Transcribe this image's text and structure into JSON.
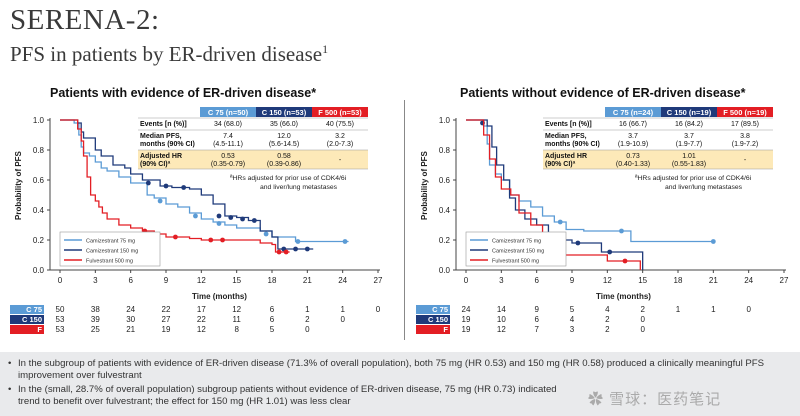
{
  "slide": {
    "title": "SERENA-2:",
    "subtitle": "PFS in patients by ER-driven disease",
    "subtitle_sup": "1",
    "watermark": "✿ 雪球：医药笔记",
    "bullets": [
      "In the subgroup of patients with evidence of ER-driven disease (71.3% of overall population), both 75 mg (HR 0.53) and 150 mg (HR 0.58) produced a clinically meaningful PFS improvement over fulvestrant",
      "In the (small, 28.7% of overall population) subgroup patients without evidence of ER-driven disease, 75 mg (HR 0.73) indicated trend to benefit over fulvestrant; the effect for 150 mg (HR 1.01) was less clear"
    ]
  },
  "colors": {
    "c75": "#5b9bd5",
    "c150": "#1f3a7a",
    "f500": "#e31e24",
    "hr_bg": "#fde9b8",
    "grid": "#cccccc"
  },
  "chart_data": [
    {
      "type": "line",
      "title": "Patients with evidence of ER-driven disease*",
      "xlabel": "Time (months)",
      "ylabel": "Probability of PFS",
      "xlim": [
        0,
        27
      ],
      "ylim": [
        0,
        1.0
      ],
      "x_ticks": [
        "0",
        "3",
        "6",
        "9",
        "12",
        "15",
        "18",
        "21",
        "24",
        "27"
      ],
      "y_ticks": [
        "0.0",
        "0.2",
        "0.4",
        "0.6",
        "0.8",
        "1.0"
      ],
      "grid": false,
      "legend_position": "bottom-left",
      "table": {
        "headers": [
          "C 75 (n=50)",
          "C 150 (n=53)",
          "F 500 (n=53)"
        ],
        "rows": [
          {
            "label": "Events [n (%)]",
            "values": [
              "34 (68.0)",
              "35 (66.0)",
              "40 (75.5)"
            ]
          },
          {
            "label": "Median PFS, months (90% CI)",
            "values": [
              "7.4 (4.5-11.1)",
              "12.0 (5.6-14.5)",
              "3.2 (2.0-7.3)"
            ]
          },
          {
            "label": "Adjusted HR (90% CI)ª",
            "values": [
              "0.53 (0.35-0.79)",
              "0.58 (0.39-0.86)",
              "-"
            ]
          }
        ],
        "footnote": "ªHRs adjusted for prior use of CDK4/6i and liver/lung metastases"
      },
      "series": [
        {
          "name": "Camizestrant 75 mg",
          "color": "#5b9bd5",
          "points": [
            [
              0,
              1.0
            ],
            [
              1,
              1.0
            ],
            [
              1.2,
              0.98
            ],
            [
              1.6,
              0.9
            ],
            [
              1.8,
              0.82
            ],
            [
              2,
              0.78
            ],
            [
              2.5,
              0.76
            ],
            [
              3,
              0.72
            ],
            [
              3.5,
              0.68
            ],
            [
              4,
              0.66
            ],
            [
              5,
              0.62
            ],
            [
              6,
              0.58
            ],
            [
              7.4,
              0.5
            ],
            [
              8,
              0.48
            ],
            [
              9,
              0.44
            ],
            [
              10,
              0.42
            ],
            [
              11,
              0.38
            ],
            [
              12,
              0.34
            ],
            [
              13,
              0.32
            ],
            [
              14,
              0.3
            ],
            [
              15,
              0.28
            ],
            [
              17,
              0.26
            ],
            [
              18,
              0.22
            ],
            [
              20,
              0.19
            ],
            [
              24.5,
              0.19
            ]
          ],
          "censors": [
            [
              8.5,
              0.46
            ],
            [
              11.5,
              0.36
            ],
            [
              13.5,
              0.31
            ],
            [
              17.5,
              0.24
            ],
            [
              20.2,
              0.19
            ],
            [
              24.2,
              0.19
            ]
          ]
        },
        {
          "name": "Camizestrant 150 mg",
          "color": "#1f3a7a",
          "points": [
            [
              0,
              1.0
            ],
            [
              1.5,
              0.98
            ],
            [
              1.8,
              0.92
            ],
            [
              2,
              0.88
            ],
            [
              3,
              0.8
            ],
            [
              3.5,
              0.76
            ],
            [
              4.5,
              0.7
            ],
            [
              5.5,
              0.68
            ],
            [
              6,
              0.64
            ],
            [
              7,
              0.6
            ],
            [
              8.5,
              0.56
            ],
            [
              9.5,
              0.55
            ],
            [
              11,
              0.54
            ],
            [
              12,
              0.5
            ],
            [
              13,
              0.44
            ],
            [
              14,
              0.36
            ],
            [
              15,
              0.35
            ],
            [
              16,
              0.33
            ],
            [
              17,
              0.26
            ],
            [
              18,
              0.22
            ],
            [
              18.5,
              0.14
            ],
            [
              21.5,
              0.14
            ]
          ],
          "censors": [
            [
              7.5,
              0.58
            ],
            [
              9,
              0.56
            ],
            [
              10.5,
              0.55
            ],
            [
              13.5,
              0.36
            ],
            [
              14.5,
              0.35
            ],
            [
              15.5,
              0.34
            ],
            [
              16.5,
              0.33
            ],
            [
              19,
              0.14
            ],
            [
              20,
              0.14
            ],
            [
              21,
              0.14
            ]
          ]
        },
        {
          "name": "Fulvestrant 500 mg",
          "color": "#e31e24",
          "points": [
            [
              0,
              1.0
            ],
            [
              1.2,
              1.0
            ],
            [
              1.5,
              0.94
            ],
            [
              1.8,
              0.86
            ],
            [
              2,
              0.76
            ],
            [
              2.3,
              0.62
            ],
            [
              2.6,
              0.5
            ],
            [
              3,
              0.46
            ],
            [
              3.3,
              0.42
            ],
            [
              3.6,
              0.38
            ],
            [
              4,
              0.34
            ],
            [
              5,
              0.3
            ],
            [
              6,
              0.28
            ],
            [
              7,
              0.26
            ],
            [
              8,
              0.24
            ],
            [
              9,
              0.22
            ],
            [
              11,
              0.21
            ],
            [
              12,
              0.2
            ],
            [
              15,
              0.2
            ],
            [
              17,
              0.18
            ],
            [
              18,
              0.17
            ],
            [
              18.3,
              0.12
            ],
            [
              19.5,
              0.12
            ]
          ],
          "censors": [
            [
              7.2,
              0.26
            ],
            [
              9.8,
              0.22
            ],
            [
              12.8,
              0.2
            ],
            [
              13.8,
              0.2
            ],
            [
              18.6,
              0.12
            ],
            [
              19.2,
              0.12
            ]
          ]
        }
      ],
      "at_risk": {
        "labels": [
          "C 75",
          "C 150",
          "F"
        ],
        "rows": [
          [
            "50",
            "38",
            "24",
            "22",
            "17",
            "12",
            "6",
            "1",
            "1",
            "0"
          ],
          [
            "53",
            "39",
            "30",
            "27",
            "22",
            "11",
            "6",
            "2",
            "0",
            ""
          ],
          [
            "53",
            "25",
            "21",
            "19",
            "12",
            "8",
            "5",
            "0",
            "",
            ""
          ]
        ]
      }
    },
    {
      "type": "line",
      "title": "Patients without evidence of ER-driven disease*",
      "xlabel": "Time (months)",
      "ylabel": "Probability of PFS",
      "xlim": [
        0,
        27
      ],
      "ylim": [
        0,
        1.0
      ],
      "x_ticks": [
        "0",
        "3",
        "6",
        "9",
        "12",
        "15",
        "18",
        "21",
        "24",
        "27"
      ],
      "y_ticks": [
        "0.0",
        "0.2",
        "0.4",
        "0.6",
        "0.8",
        "1.0"
      ],
      "grid": false,
      "legend_position": "bottom-left",
      "table": {
        "headers": [
          "C 75 (n=24)",
          "C 150 (n=19)",
          "F 500 (n=19)"
        ],
        "rows": [
          {
            "label": "Events [n (%)]",
            "values": [
              "16 (66.7)",
              "16 (84.2)",
              "17 (89.5)"
            ]
          },
          {
            "label": "Median PFS, months (90% CI)",
            "values": [
              "3.7 (1.9-10.9)",
              "3.7 (1.9-7.7)",
              "3.8 (1.9-7.2)"
            ]
          },
          {
            "label": "Adjusted HR (90% CI)ª",
            "values": [
              "0.73 (0.40-1.33)",
              "1.01 (0.55-1.83)",
              "-"
            ]
          }
        ],
        "footnote": "ªHRs adjusted for prior use of CDK4/6i and liver/lung metastases"
      },
      "series": [
        {
          "name": "Camizestrant 75 mg",
          "color": "#5b9bd5",
          "points": [
            [
              0,
              1.0
            ],
            [
              1,
              1.0
            ],
            [
              1.5,
              0.96
            ],
            [
              1.8,
              0.84
            ],
            [
              2,
              0.7
            ],
            [
              2.5,
              0.64
            ],
            [
              3,
              0.6
            ],
            [
              3.7,
              0.5
            ],
            [
              4.5,
              0.46
            ],
            [
              5.5,
              0.42
            ],
            [
              6.5,
              0.36
            ],
            [
              7.5,
              0.32
            ],
            [
              8.5,
              0.27
            ],
            [
              10,
              0.26
            ],
            [
              13,
              0.26
            ],
            [
              14,
              0.19
            ],
            [
              21,
              0.19
            ]
          ],
          "censors": [
            [
              8,
              0.32
            ],
            [
              13.2,
              0.26
            ],
            [
              21,
              0.19
            ]
          ]
        },
        {
          "name": "Camizestrant 150 mg",
          "color": "#1f3a7a",
          "points": [
            [
              0,
              1.0
            ],
            [
              1.8,
              0.96
            ],
            [
              2.2,
              0.82
            ],
            [
              2.6,
              0.7
            ],
            [
              3.2,
              0.6
            ],
            [
              3.7,
              0.48
            ],
            [
              4.2,
              0.4
            ],
            [
              5,
              0.34
            ],
            [
              6,
              0.3
            ],
            [
              7,
              0.24
            ],
            [
              8,
              0.2
            ],
            [
              9,
              0.18
            ],
            [
              11,
              0.18
            ],
            [
              11.5,
              0.12
            ],
            [
              15,
              0.12
            ],
            [
              15,
              0.0
            ]
          ],
          "censors": [
            [
              1.4,
              0.98
            ],
            [
              9.5,
              0.18
            ],
            [
              12.2,
              0.12
            ]
          ]
        },
        {
          "name": "Fulvestrant 500 mg",
          "color": "#e31e24",
          "points": [
            [
              0,
              1.0
            ],
            [
              1,
              1.0
            ],
            [
              1.5,
              0.9
            ],
            [
              2,
              0.74
            ],
            [
              2.5,
              0.62
            ],
            [
              3,
              0.54
            ],
            [
              3.8,
              0.5
            ],
            [
              4.5,
              0.38
            ],
            [
              5.5,
              0.3
            ],
            [
              6.5,
              0.22
            ],
            [
              7,
              0.16
            ],
            [
              7.5,
              0.1
            ],
            [
              11,
              0.1
            ],
            [
              12,
              0.06
            ],
            [
              14.5,
              0.06
            ],
            [
              14.8,
              0.0
            ]
          ],
          "censors": [
            [
              8.2,
              0.1
            ],
            [
              13.5,
              0.06
            ]
          ]
        }
      ],
      "at_risk": {
        "labels": [
          "C 75",
          "C 150",
          "F"
        ],
        "rows": [
          [
            "24",
            "14",
            "9",
            "5",
            "4",
            "2",
            "1",
            "1",
            "0",
            ""
          ],
          [
            "19",
            "10",
            "6",
            "4",
            "2",
            "0",
            "",
            "",
            "",
            ""
          ],
          [
            "19",
            "12",
            "7",
            "3",
            "2",
            "0",
            "",
            "",
            "",
            ""
          ]
        ]
      }
    }
  ]
}
